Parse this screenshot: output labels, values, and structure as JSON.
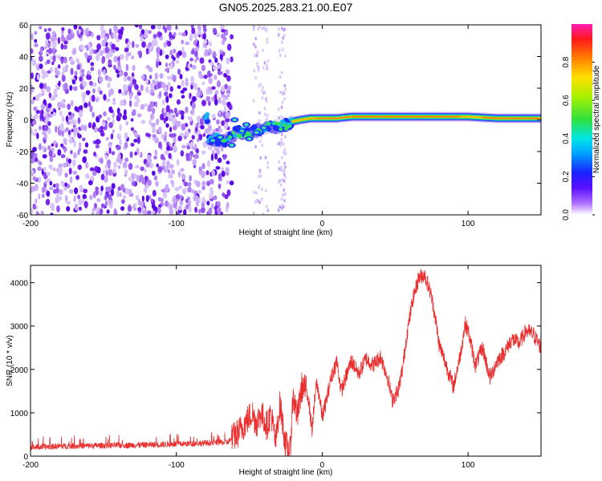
{
  "title": "GN05.2025.283.21.00.E07",
  "top": {
    "xlabel": "Height of straight line (km)",
    "ylabel": "Frequency (Hz)",
    "xlim": [
      -200,
      150
    ],
    "ylim": [
      -60,
      60
    ],
    "xticks": [
      -200,
      -100,
      0,
      100
    ],
    "yticks": [
      -60,
      -40,
      -20,
      0,
      20,
      40,
      60
    ],
    "ridge": [
      [
        -78,
        -12
      ],
      [
        -65,
        -13
      ],
      [
        -58,
        -7
      ],
      [
        -52,
        -9
      ],
      [
        -45,
        -7
      ],
      [
        -38,
        -5
      ],
      [
        -30,
        -4
      ],
      [
        -25,
        -3
      ],
      [
        -20,
        -1
      ],
      [
        -15,
        0
      ],
      [
        -8,
        1
      ],
      [
        0,
        1
      ],
      [
        10,
        1
      ],
      [
        20,
        2
      ],
      [
        40,
        2
      ],
      [
        60,
        2
      ],
      [
        80,
        2
      ],
      [
        100,
        2
      ],
      [
        120,
        1
      ],
      [
        150,
        1
      ]
    ],
    "colors": [
      "#ffffff",
      "#c8a0f8",
      "#6010f0",
      "#1020ff",
      "#00c8ff",
      "#20e070",
      "#90f020",
      "#ffe000",
      "#ff8000",
      "#ff1010",
      "#ff30c0"
    ]
  },
  "colorbar": {
    "label": "Normalized spectral amplitude",
    "range": [
      0,
      1
    ],
    "ticks": [
      "0.0",
      "0.2",
      "0.4",
      "0.6",
      "0.8"
    ],
    "stops": [
      "#ffffff",
      "#9a30ff",
      "#3a10ff",
      "#0080ff",
      "#00e6e6",
      "#30e040",
      "#a0f000",
      "#ffe000",
      "#ff8000",
      "#ff1a1a",
      "#ff1ab4"
    ]
  },
  "chart_data": [
    {
      "type": "heatmap",
      "title": "GN05.2025.283.21.00.E07",
      "xlabel": "Height of straight line (km)",
      "ylabel": "Frequency (Hz)",
      "xlim": [
        -200,
        150
      ],
      "ylim": [
        -60,
        60
      ],
      "xticks": [
        -200,
        -100,
        0,
        100
      ],
      "yticks": [
        -60,
        -40,
        -20,
        0,
        20,
        40,
        60
      ],
      "description_points": [
        [
          -75,
          -12
        ],
        [
          -50,
          -8
        ],
        [
          -30,
          -4
        ],
        [
          0,
          1
        ],
        [
          50,
          2
        ],
        [
          100,
          2
        ],
        [
          150,
          1
        ]
      ]
    },
    {
      "type": "line",
      "xlabel": "Height of straight line (km)",
      "ylabel": "SNR (10 * v/v)",
      "xlim": [
        -200,
        150
      ],
      "ylim": [
        0,
        4400
      ],
      "xticks": [
        -200,
        -100,
        0,
        100
      ],
      "yticks": [
        0,
        1000,
        2000,
        3000,
        4000
      ],
      "color": "#e83030",
      "x": [
        -200,
        -180,
        -160,
        -140,
        -120,
        -100,
        -80,
        -65,
        -58,
        -52,
        -48,
        -45,
        -42,
        -38,
        -35,
        -32,
        -29,
        -25,
        -22,
        -20,
        -17,
        -14,
        -10,
        -7,
        -4,
        -2,
        0,
        3,
        6,
        10,
        13,
        16,
        20,
        25,
        30,
        35,
        40,
        45,
        48,
        52,
        55,
        58,
        62,
        66,
        70,
        72,
        74,
        76,
        78,
        80,
        85,
        90,
        95,
        98,
        100,
        105,
        110,
        115,
        120,
        125,
        130,
        135,
        140,
        145,
        150
      ],
      "y": [
        200,
        230,
        240,
        250,
        260,
        280,
        300,
        320,
        520,
        800,
        1000,
        750,
        1000,
        700,
        1000,
        300,
        1200,
        250,
        100,
        1400,
        900,
        1600,
        1500,
        600,
        1700,
        1400,
        900,
        1300,
        1800,
        2200,
        1500,
        1800,
        2200,
        1900,
        2250,
        2100,
        2300,
        1800,
        1300,
        1500,
        2000,
        2800,
        3600,
        4100,
        4200,
        4000,
        3800,
        3500,
        3100,
        2600,
        2100,
        1600,
        2400,
        3050,
        2900,
        2100,
        2500,
        1800,
        2200,
        2400,
        2700,
        2600,
        2900,
        2800,
        2500
      ]
    }
  ],
  "bottom": {
    "xlabel": "Height of straight line (km)",
    "ylabel": "SNR (10 * v/v)",
    "xticks": [
      -200,
      -100,
      0,
      100
    ],
    "yticks": [
      0,
      1000,
      2000,
      3000,
      4000
    ]
  }
}
